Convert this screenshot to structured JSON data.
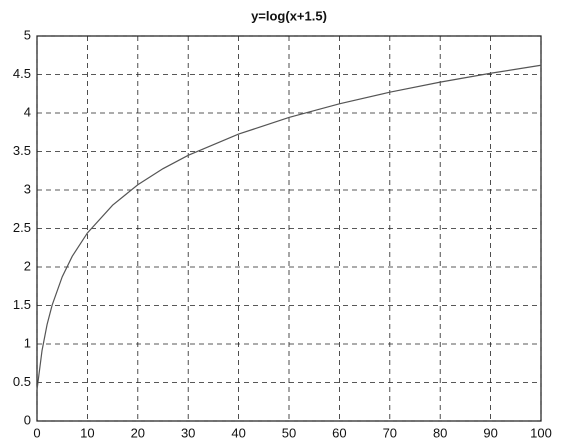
{
  "chart_data": {
    "type": "line",
    "title": "y=log(x+1.5)",
    "x": [
      0,
      1,
      2,
      3,
      5,
      7,
      10,
      15,
      20,
      25,
      30,
      40,
      50,
      60,
      70,
      80,
      90,
      100
    ],
    "series": [
      {
        "color": "#555555",
        "values": [
          0.405,
          0.916,
          1.253,
          1.504,
          1.872,
          2.14,
          2.442,
          2.803,
          3.068,
          3.277,
          3.45,
          3.726,
          3.942,
          4.119,
          4.27,
          4.401,
          4.516,
          4.62
        ]
      }
    ],
    "xlim": [
      0,
      100
    ],
    "ylim": [
      0,
      5
    ],
    "xticks": [
      0,
      10,
      20,
      30,
      40,
      50,
      60,
      70,
      80,
      90,
      100
    ],
    "yticks": [
      0,
      0.5,
      1,
      1.5,
      2,
      2.5,
      3,
      3.5,
      4,
      4.5,
      5
    ],
    "grid": true
  }
}
